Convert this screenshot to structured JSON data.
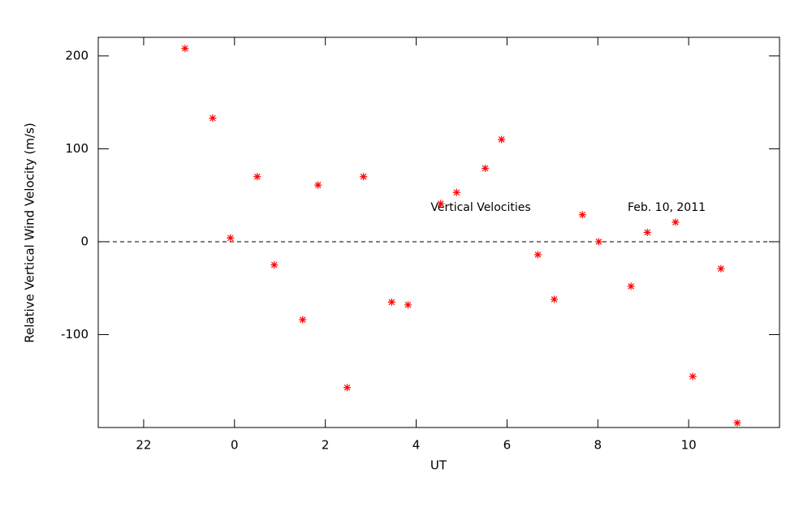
{
  "chart_data": {
    "type": "scatter",
    "x_label": "UT",
    "y_label": "Relative Vertical Wind Velocity (m/s)",
    "annotations": [
      "Vertical Velocities",
      "Feb. 10, 2011"
    ],
    "xlim": [
      -3,
      12
    ],
    "ylim": [
      -200,
      220
    ],
    "xticks": [
      {
        "value": -2,
        "label": "22"
      },
      0,
      2,
      4,
      6,
      8,
      10
    ],
    "yticks": [
      -100,
      0,
      100,
      200
    ],
    "hline": 0,
    "series": [
      {
        "color": "#ff0000",
        "x": [
          -1.09,
          -0.48,
          -0.09,
          0.5,
          0.875,
          1.5,
          1.84,
          2.48,
          2.84,
          3.46,
          3.82,
          4.54,
          4.89,
          5.52,
          5.88,
          6.68,
          7.04,
          7.66,
          8.02,
          8.73,
          9.09,
          9.71,
          10.09,
          10.71,
          11.07
        ],
        "values": [
          208,
          133,
          4,
          70,
          -25,
          -84,
          61,
          -157,
          70,
          -65,
          -68,
          41,
          53,
          79,
          110,
          -14,
          -62,
          29,
          0,
          -48,
          10,
          21,
          -145,
          -29,
          -195
        ]
      }
    ]
  }
}
